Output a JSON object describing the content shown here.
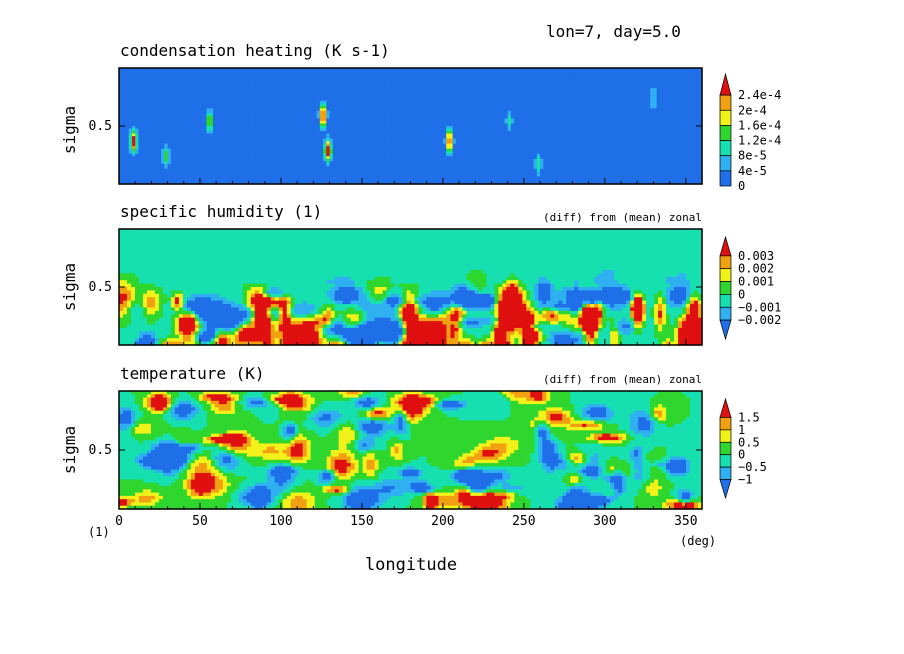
{
  "header": {
    "text": "lon=7, day=5.0"
  },
  "colors": {
    "heat": [
      "#1f6fe8",
      "#2fb0f0",
      "#16e0b0",
      "#2ed62e",
      "#f2f21a",
      "#f0a010",
      "#e01010"
    ],
    "diff": [
      "#1f6fe8",
      "#2fb0f0",
      "#16e0b0",
      "#2ed62e",
      "#f2f21a",
      "#f0a010",
      "#e01010"
    ]
  },
  "chart_data": [
    {
      "type": "heatmap",
      "title": "condensation heating (K s-1)",
      "subtitle": "",
      "ylabel": "sigma",
      "yticks": [
        "0.5"
      ],
      "colorbar_labels": [
        "2.4e-4",
        "2e-4",
        "1.6e-4",
        "1.2e-4",
        "8e-5",
        "4e-5",
        "0"
      ],
      "colorbar_levels": [
        0,
        4e-05,
        8e-05,
        0.00012,
        0.00016,
        0.0002,
        0.00024
      ],
      "colorbar_arrow_top": true,
      "colorbar_arrow_bottom": false,
      "xlim": [
        0,
        360
      ],
      "ylim": [
        1,
        0
      ],
      "features": [
        {
          "lon": 8,
          "sigma": 0.62,
          "value": 0.00026
        },
        {
          "lon": 28,
          "sigma": 0.75,
          "value": 0.00013
        },
        {
          "lon": 55,
          "sigma": 0.45,
          "value": 0.00017
        },
        {
          "lon": 125,
          "sigma": 0.4,
          "value": 0.00027
        },
        {
          "lon": 128,
          "sigma": 0.7,
          "value": 0.00027
        },
        {
          "lon": 203,
          "sigma": 0.62,
          "value": 0.00026
        },
        {
          "lon": 240,
          "sigma": 0.45,
          "value": 9e-05
        },
        {
          "lon": 258,
          "sigma": 0.82,
          "value": 0.00011
        },
        {
          "lon": 329,
          "sigma": 0.25,
          "value": 9e-05
        }
      ]
    },
    {
      "type": "heatmap",
      "title": "specific humidity (1)",
      "subtitle": "(diff) from (mean) zonal",
      "ylabel": "sigma",
      "yticks": [
        "0.5"
      ],
      "colorbar_labels": [
        "0.003",
        "0.002",
        "0.001",
        "0",
        "−0.001",
        "−0.002"
      ],
      "colorbar_levels": [
        -0.002,
        -0.001,
        0,
        0.001,
        0.002,
        0.003
      ],
      "colorbar_arrow_top": true,
      "colorbar_arrow_bottom": true,
      "xlim": [
        0,
        360
      ],
      "ylim": [
        1,
        0
      ]
    },
    {
      "type": "heatmap",
      "title": "temperature (K)",
      "subtitle": "(diff) from (mean) zonal",
      "ylabel": "sigma",
      "yticks": [
        "0.5"
      ],
      "colorbar_labels": [
        "1.5",
        "1",
        "0.5",
        "0",
        "−0.5",
        "−1"
      ],
      "colorbar_levels": [
        -1,
        -0.5,
        0,
        0.5,
        1,
        1.5
      ],
      "colorbar_arrow_top": true,
      "colorbar_arrow_bottom": true,
      "xlim": [
        0,
        360
      ],
      "ylim": [
        1,
        0
      ],
      "xlabel": "longitude",
      "xticks": [
        0,
        50,
        100,
        150,
        200,
        250,
        300,
        350
      ],
      "x_unit": "(deg)",
      "y_unit": "(1)"
    }
  ]
}
